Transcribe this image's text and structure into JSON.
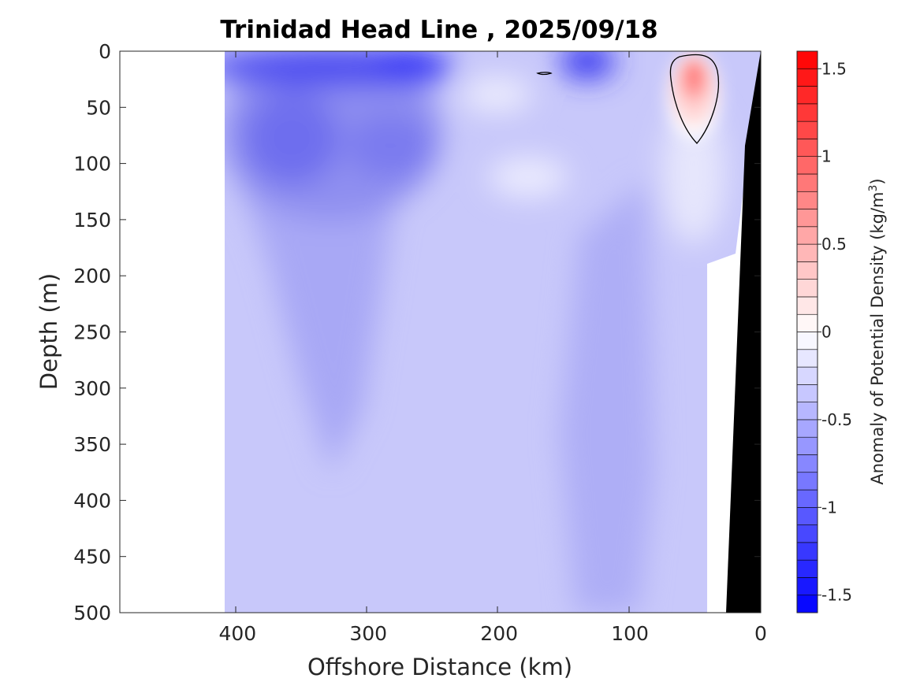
{
  "chart_data": {
    "type": "heatmap",
    "title": "Trinidad Head Line , 2025/09/18",
    "xlabel": "Offshore Distance (km)",
    "ylabel": "Depth (m)",
    "xlim": [
      490,
      0
    ],
    "ylim": [
      0,
      500
    ],
    "x_ticks": [
      "400",
      "300",
      "200",
      "100",
      "0"
    ],
    "y_ticks": [
      "0",
      "50",
      "100",
      "150",
      "200",
      "250",
      "300",
      "350",
      "400",
      "450",
      "500"
    ],
    "colorbar": {
      "label_prefix": "Anomaly of Potential Density (kg/m",
      "label_sup": "3",
      "label_suffix": ")",
      "range": [
        -1.6,
        1.6
      ],
      "step": 0.1,
      "ticks": [
        "1.5",
        "1",
        "0.5",
        "0",
        "-0.5",
        "-1",
        "-1.5"
      ]
    },
    "approximate_regions_note_excluded": true,
    "anomaly_field_samples": [
      {
        "x": 400,
        "depth": 10,
        "value": -1.0
      },
      {
        "x": 270,
        "depth": 15,
        "value": -1.3
      },
      {
        "x": 130,
        "depth": 10,
        "value": -1.1
      },
      {
        "x": 360,
        "depth": 70,
        "value": -0.95
      },
      {
        "x": 280,
        "depth": 80,
        "value": -0.9
      },
      {
        "x": 340,
        "depth": 200,
        "value": -0.55
      },
      {
        "x": 200,
        "depth": 120,
        "value": -0.15
      },
      {
        "x": 50,
        "depth": 25,
        "value": 0.5
      },
      {
        "x": 50,
        "depth": 120,
        "value": -0.05
      },
      {
        "x": 250,
        "depth": 400,
        "value": -0.35
      },
      {
        "x": 90,
        "depth": 400,
        "value": -0.45
      },
      {
        "x": 390,
        "depth": 450,
        "value": -0.3
      }
    ],
    "data_extent_km": [
      410,
      20
    ],
    "bathymetry_color": "#000000"
  }
}
